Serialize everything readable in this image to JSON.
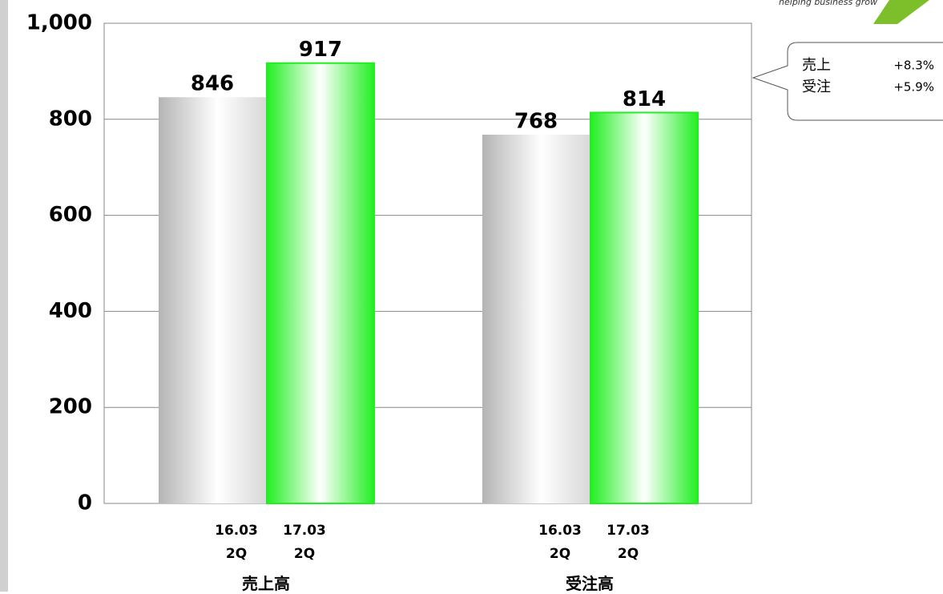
{
  "chart_data": {
    "type": "bar",
    "categories": [
      "売上高",
      "受注高"
    ],
    "series": [
      {
        "name": "16.03 2Q",
        "color": "#c0c0c0",
        "values": [
          846,
          768
        ]
      },
      {
        "name": "17.03 2Q",
        "color": "#22ee22",
        "values": [
          917,
          814
        ]
      }
    ],
    "ylim": [
      0,
      1000
    ],
    "yticks": [
      0,
      200,
      400,
      600,
      800,
      {
        "value": 1000,
        "label": "1,000"
      }
    ],
    "grid": true,
    "callout": {
      "rows": [
        {
          "label": "売上",
          "value": "+8.3%"
        },
        {
          "label": "受注",
          "value": "+5.9%"
        }
      ]
    },
    "logo": "helping business grow"
  }
}
